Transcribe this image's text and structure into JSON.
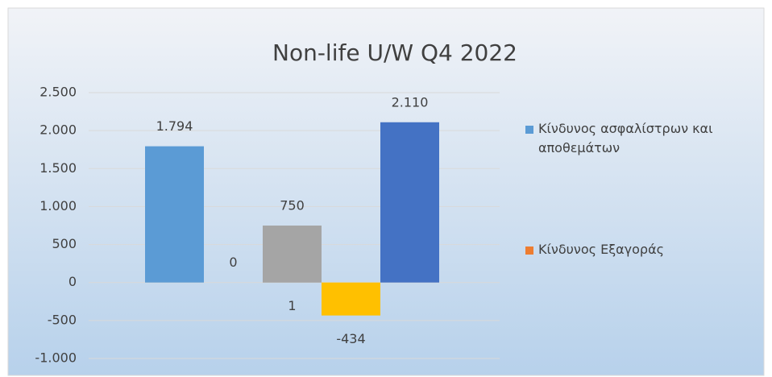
{
  "chart_data": {
    "type": "bar",
    "title": "Non-life U/W Q4 2022",
    "categories": [
      null,
      null,
      null,
      null,
      null
    ],
    "series": [
      {
        "name": "Κίνδυνος ασφαλίστρων και αποθεμάτων",
        "color": "#5b9bd5",
        "values": [
          1794,
          null,
          null,
          null,
          null
        ],
        "value_labels": [
          "1.794",
          null,
          null,
          null,
          null
        ]
      },
      {
        "name": "Κίνδυνος Εξαγοράς",
        "color": "#ed7d31",
        "values": [
          null,
          0,
          null,
          null,
          null
        ]
      },
      {
        "color": "#a5a5a5",
        "values": [
          null,
          null,
          750,
          null,
          null
        ]
      },
      {
        "color": "#a5a5a5",
        "values": [
          null,
          null,
          1,
          null,
          null
        ],
        "label_position": "below"
      },
      {
        "color": "#ffc000",
        "values": [
          null,
          null,
          null,
          -434,
          null
        ]
      },
      {
        "color": "#4472c4",
        "values": [
          null,
          null,
          null,
          null,
          2110
        ],
        "value_labels": [
          null,
          null,
          null,
          null,
          "2.110"
        ]
      }
    ],
    "ylim": [
      -1000,
      2500
    ],
    "yticks": [
      {
        "value": -1000,
        "label": "-1.000"
      },
      -500,
      0,
      500,
      {
        "value": 1000,
        "label": "1.000"
      },
      {
        "value": 1500,
        "label": "1.500"
      },
      {
        "value": 2000,
        "label": "2.000"
      },
      {
        "value": 2500,
        "label": "2.500"
      }
    ],
    "grid": true,
    "legend": "right"
  }
}
